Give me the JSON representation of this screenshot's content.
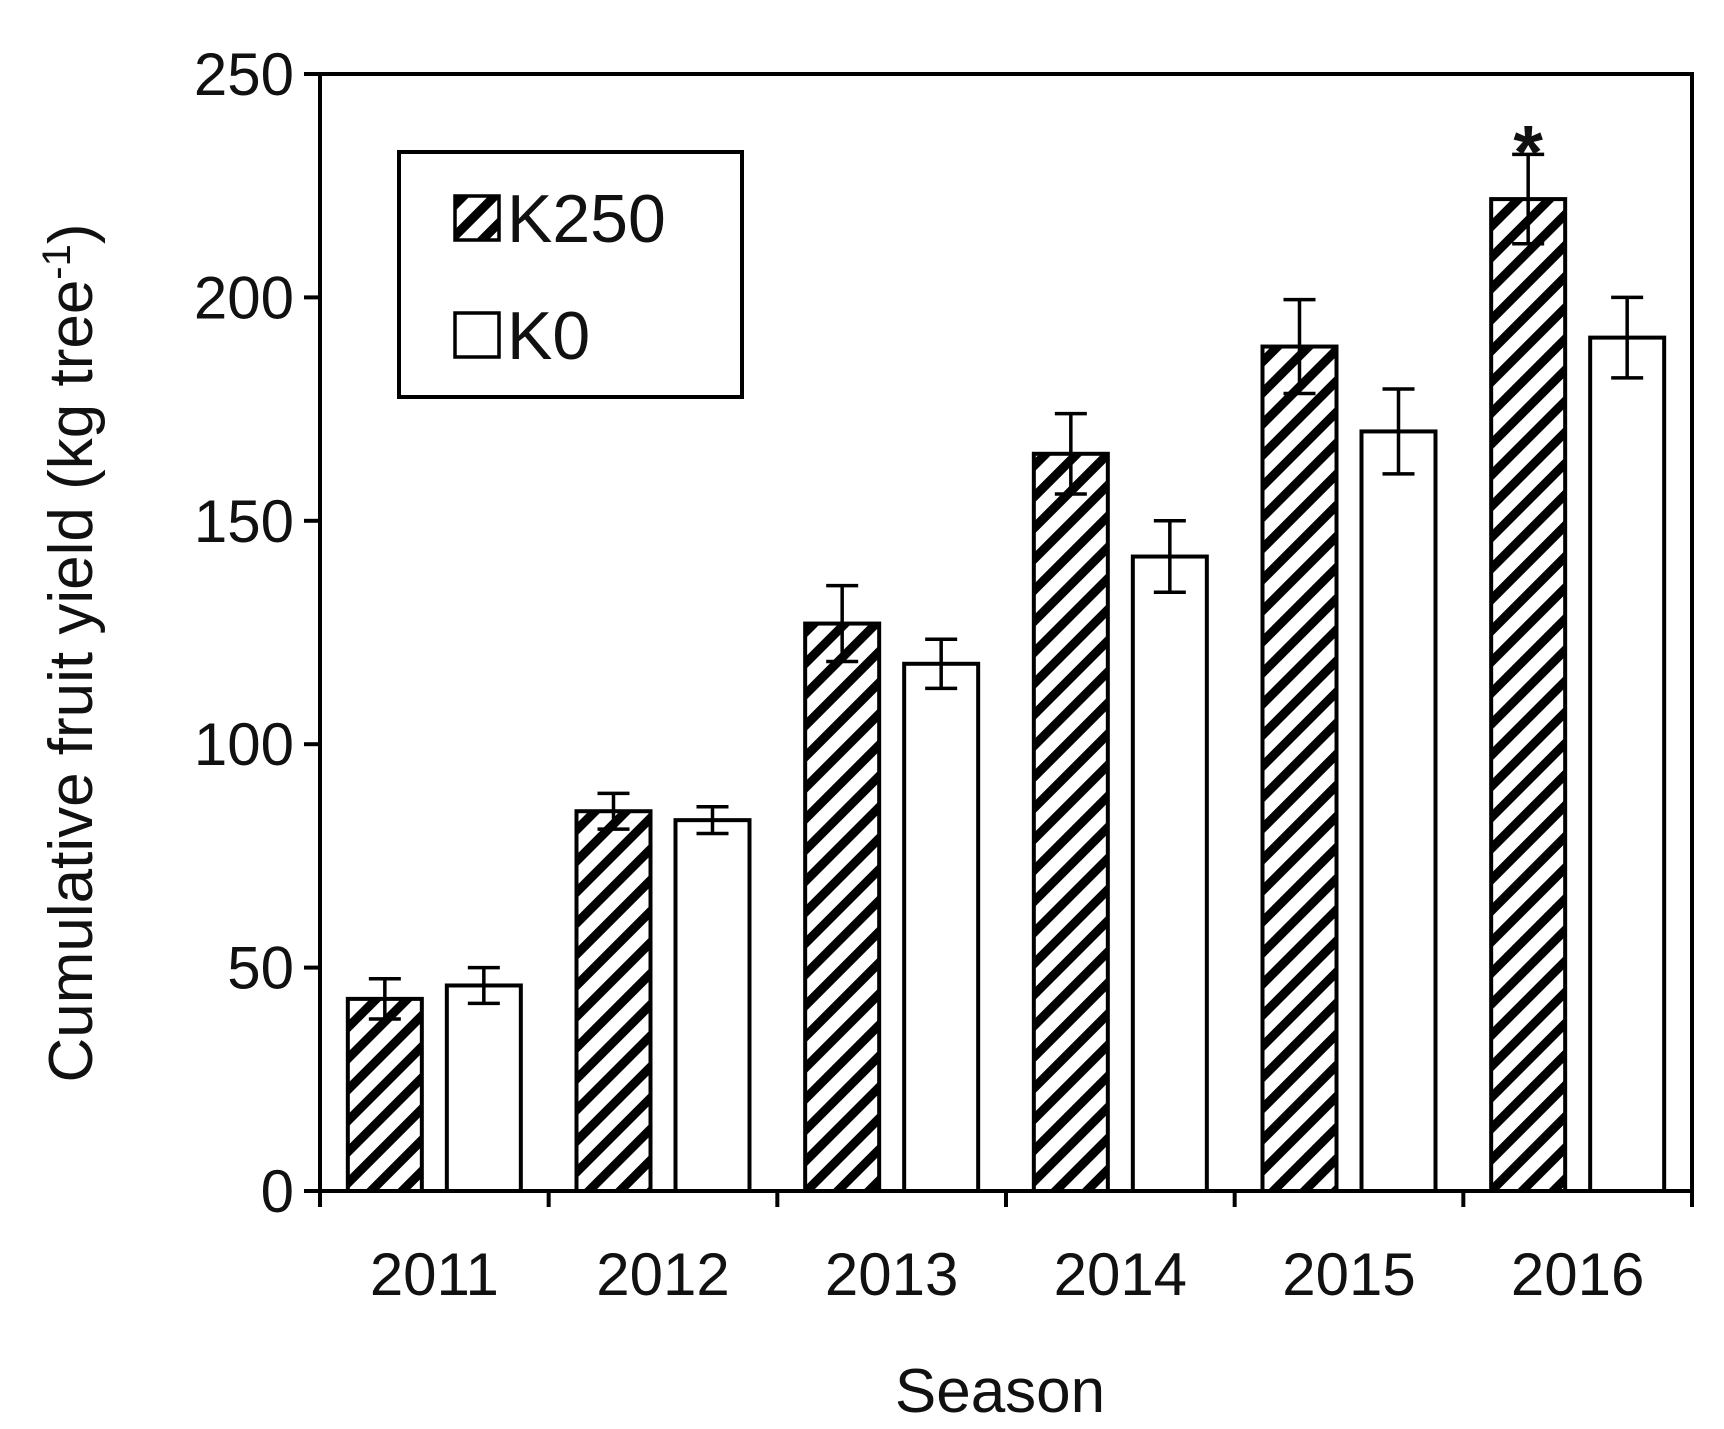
{
  "chart_data": {
    "type": "bar",
    "xlabel": "Season",
    "ylabel_main": "Cumulative fruit yield (kg tree",
    "ylabel_sup": "-1",
    "ylabel_close": ")",
    "ylim": [
      0,
      250
    ],
    "yticks": [
      0,
      50,
      100,
      150,
      200,
      250
    ],
    "categories": [
      "2011",
      "2012",
      "2013",
      "2014",
      "2015",
      "2016"
    ],
    "series": [
      {
        "name": "K250",
        "pattern": "diagonal-hatch",
        "values": [
          43,
          85,
          127,
          165,
          189,
          222
        ],
        "errors": [
          4.5,
          4.0,
          8.5,
          9.0,
          10.5,
          10.0
        ]
      },
      {
        "name": "K0",
        "pattern": "none",
        "values": [
          46,
          83,
          118,
          142,
          170,
          191
        ],
        "errors": [
          4.0,
          3.0,
          5.5,
          8.0,
          9.5,
          9.0
        ]
      }
    ],
    "annotations": [
      {
        "category": "2016",
        "series": "K250",
        "text": "*"
      }
    ],
    "legend_position": "top-left",
    "grid": false,
    "colors": {
      "bar_stroke": "#000000",
      "bar_fill": "#ffffff",
      "hatch": "#000000"
    }
  }
}
